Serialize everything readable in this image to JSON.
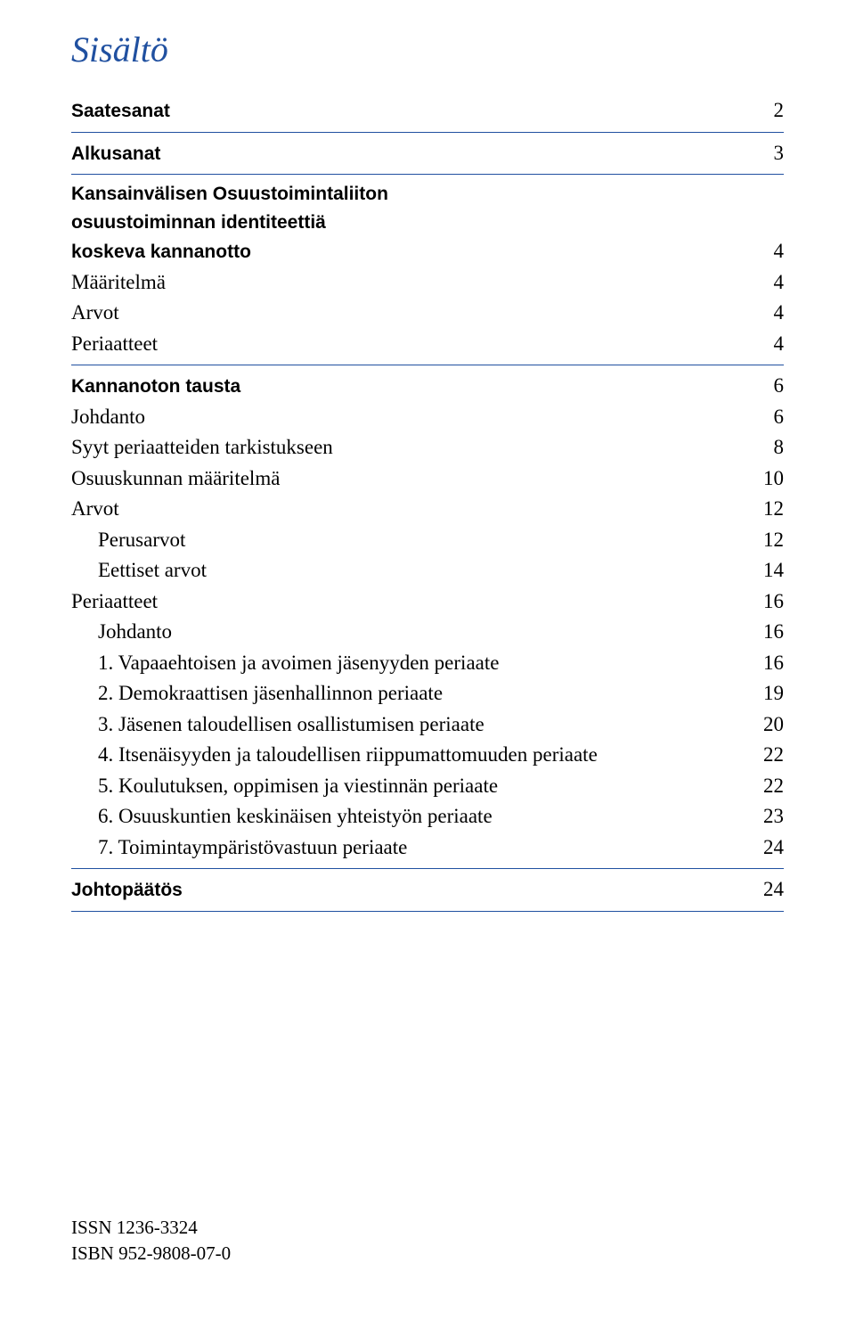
{
  "title": "Sisältö",
  "entries": {
    "saatesanat": {
      "label": "Saatesanat",
      "page": "2"
    },
    "alkusanat": {
      "label": "Alkusanat",
      "page": "3"
    },
    "kansainvalisen_l1": "Kansainvälisen Osuustoimintaliiton",
    "kansainvalisen_l2": "osuustoiminnan identiteettiä",
    "kansainvalisen_l3": {
      "label": "koskeva kannanotto",
      "page": "4"
    },
    "maaritelma": {
      "label": "Määritelmä",
      "page": "4"
    },
    "arvot1": {
      "label": "Arvot",
      "page": "4"
    },
    "periaatteet1": {
      "label": "Periaatteet",
      "page": "4"
    },
    "kannanoton": {
      "label": "Kannanoton tausta",
      "page": "6"
    },
    "johdanto1": {
      "label": "Johdanto",
      "page": "6"
    },
    "syyt": {
      "label": "Syyt periaatteiden tarkistukseen",
      "page": "8"
    },
    "osuuskunnan": {
      "label": "Osuuskunnan määritelmä",
      "page": "10"
    },
    "arvot2": {
      "label": "Arvot",
      "page": "12"
    },
    "perusarvot": {
      "label": "Perusarvot",
      "page": "12"
    },
    "eettiset": {
      "label": "Eettiset arvot",
      "page": "14"
    },
    "periaatteet2": {
      "label": "Periaatteet",
      "page": "16"
    },
    "johdanto2": {
      "label": "Johdanto",
      "page": "16"
    },
    "p1": {
      "label": "1. Vapaaehtoisen ja avoimen jäsenyyden periaate",
      "page": "16"
    },
    "p2": {
      "label": "2. Demokraattisen jäsenhallinnon periaate",
      "page": "19"
    },
    "p3": {
      "label": "3. Jäsenen taloudellisen osallistumisen periaate",
      "page": "20"
    },
    "p4": {
      "label": "4. Itsenäisyyden ja taloudellisen riippumattomuuden periaate",
      "page": "22"
    },
    "p5": {
      "label": "5. Koulutuksen, oppimisen ja viestinnän periaate",
      "page": "22"
    },
    "p6": {
      "label": "6. Osuuskuntien keskinäisen yhteistyön periaate",
      "page": "23"
    },
    "p7": {
      "label": "7. Toimintaympäristövastuun periaate",
      "page": "24"
    },
    "johtopaatos": {
      "label": "Johtopäätös",
      "page": "24"
    }
  },
  "footer": {
    "issn": "ISSN 1236-3324",
    "isbn": "ISBN 952-9808-07-0"
  },
  "colors": {
    "accent": "#2050a0",
    "text": "#000000",
    "background": "#ffffff"
  }
}
